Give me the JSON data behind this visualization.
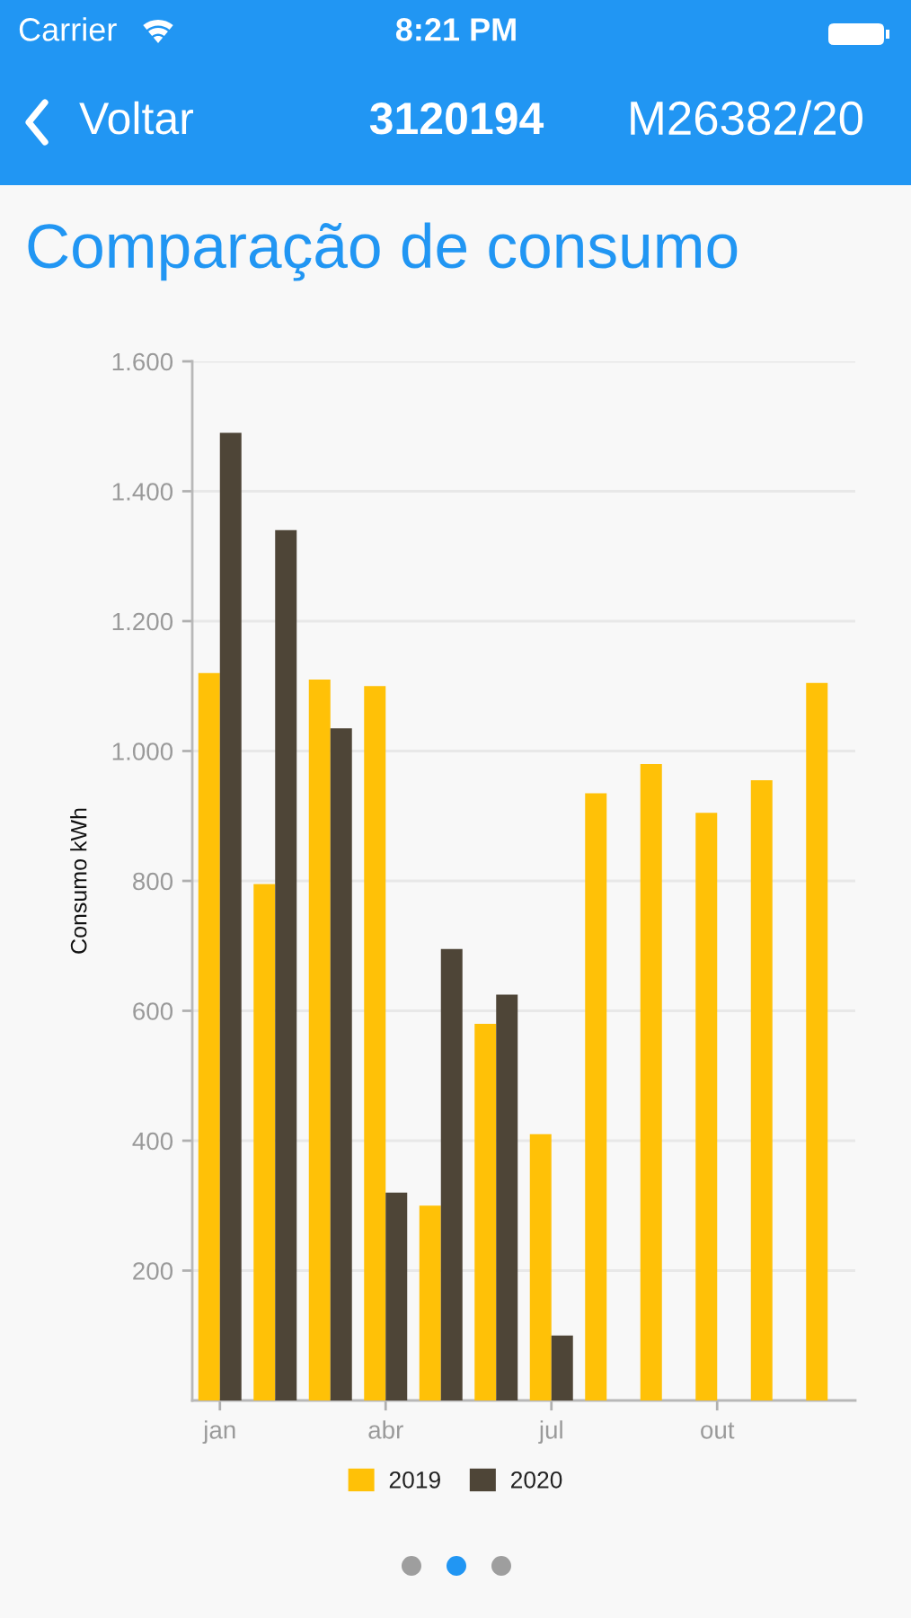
{
  "chart_data": {
    "type": "bar",
    "title": "Comparação de consumo",
    "annotations": [
      "Carrier",
      "8:21 PM",
      "Voltar",
      "3120194",
      "M26382/20"
    ],
    "ylabel": "Consumo kWh",
    "categories": [
      "jan",
      null,
      null,
      "abr",
      null,
      null,
      "jul",
      null,
      null,
      "out",
      null,
      null
    ],
    "series": [
      {
        "name": "2019",
        "color": "#ffc107",
        "values": [
          1120,
          795,
          1110,
          1100,
          300,
          580,
          410,
          935,
          980,
          905,
          955,
          1105
        ]
      },
      {
        "name": "2020",
        "color": "#4e4537",
        "values": [
          1490,
          1340,
          1035,
          320,
          695,
          625,
          100,
          null,
          null,
          null,
          null,
          null
        ]
      }
    ],
    "ylim": [
      0,
      1600
    ],
    "yticks": [
      200,
      400,
      600,
      800,
      {
        "value": 1000,
        "label": "1.000"
      },
      {
        "value": 1200,
        "label": "1.200"
      },
      {
        "value": 1400,
        "label": "1.400"
      },
      {
        "value": 1600,
        "label": "1.600"
      }
    ],
    "grid": "y",
    "legend": "bottom"
  }
}
